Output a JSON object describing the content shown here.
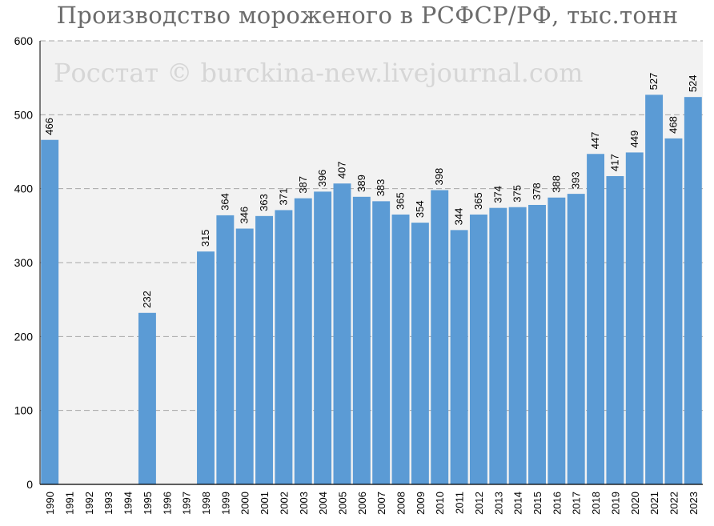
{
  "chart_data": {
    "type": "bar",
    "title": "Производство мороженого в РСФСР/РФ, тыс.тонн",
    "watermark": "Росстат © burckina-new.livejournal.com",
    "categories": [
      "1990",
      "1991",
      "1992",
      "1993",
      "1994",
      "1995",
      "1996",
      "1997",
      "1998",
      "1999",
      "2000",
      "2001",
      "2002",
      "2003",
      "2004",
      "2005",
      "2006",
      "2007",
      "2008",
      "2009",
      "2010",
      "2011",
      "2012",
      "2013",
      "2014",
      "2015",
      "2016",
      "2017",
      "2018",
      "2019",
      "2020",
      "2021",
      "2022",
      "2023"
    ],
    "values": [
      466,
      null,
      null,
      null,
      null,
      232,
      null,
      null,
      315,
      364,
      346,
      363,
      371,
      387,
      396,
      407,
      389,
      383,
      365,
      354,
      398,
      344,
      365,
      374,
      375,
      378,
      388,
      393,
      447,
      417,
      449,
      527,
      468,
      524
    ],
    "ylim": [
      0,
      600
    ],
    "yticks": [
      0,
      100,
      200,
      300,
      400,
      500,
      600
    ],
    "xlabel": "",
    "ylabel": "",
    "grid": "horizontal dashed",
    "legend": "none",
    "colors": {
      "bar": "#5b9bd5",
      "plot_background": "#f2f2f2",
      "gridline": "#a6a6a6",
      "axis": "#000000",
      "title": "#6b6b6b",
      "watermark": "#d6d6d6"
    }
  }
}
